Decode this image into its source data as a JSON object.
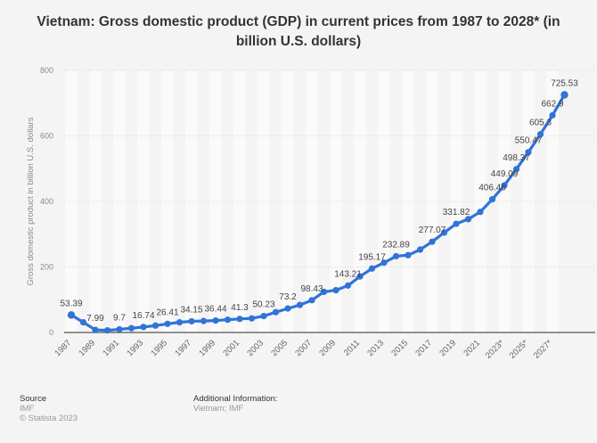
{
  "chart_data": {
    "type": "line",
    "title": "Vietnam: Gross domestic product (GDP) in current prices from 1987 to 2028* (in billion U.S. dollars)",
    "xlabel": "",
    "ylabel": "Gross domestic product in billion U.S. dollars",
    "ylim": [
      0,
      800
    ],
    "yticks": [
      0,
      200,
      400,
      600,
      800
    ],
    "grid": true,
    "legend": "none",
    "line_color": "#2f74d6",
    "x": [
      "1987",
      "1988",
      "1989",
      "1990",
      "1991",
      "1992",
      "1993",
      "1994",
      "1995",
      "1996",
      "1997",
      "1998",
      "1999",
      "2000",
      "2001",
      "2002",
      "2003",
      "2004",
      "2005",
      "2006",
      "2007",
      "2008",
      "2009",
      "2010",
      "2011",
      "2012",
      "2013",
      "2014",
      "2015",
      "2016",
      "2017",
      "2018",
      "2019",
      "2020",
      "2021",
      "2022",
      "2023*",
      "2024*",
      "2025*",
      "2026*",
      "2027*",
      "2028*"
    ],
    "xtick_labels": [
      "1987",
      "1989",
      "1991",
      "1993",
      "1995",
      "1997",
      "1999",
      "2001",
      "2003",
      "2005",
      "2007",
      "2009",
      "2011",
      "2013",
      "2015",
      "2017",
      "2019",
      "2021",
      "2023*",
      "2025*",
      "2027*"
    ],
    "values": [
      53.39,
      31,
      7.99,
      6.5,
      9.7,
      13,
      16.74,
      21,
      26.41,
      31,
      34.15,
      35,
      36.44,
      39,
      41.3,
      43,
      50.23,
      62,
      73.2,
      84,
      98.43,
      124,
      129,
      143.21,
      171,
      195.17,
      213,
      232.89,
      236,
      253,
      277.07,
      305,
      331.82,
      346,
      368,
      406.45,
      449.09,
      498.37,
      550.47,
      605.3,
      662.9,
      725.53
    ],
    "data_labels": [
      {
        "x": "1987",
        "text": "53.39"
      },
      {
        "x": "1989",
        "text": "7.99"
      },
      {
        "x": "1991",
        "text": "9.7"
      },
      {
        "x": "1993",
        "text": "16.74"
      },
      {
        "x": "1995",
        "text": "26.41"
      },
      {
        "x": "1997",
        "text": "34.15"
      },
      {
        "x": "1999",
        "text": "36.44"
      },
      {
        "x": "2001",
        "text": "41.3"
      },
      {
        "x": "2003",
        "text": "50.23"
      },
      {
        "x": "2005",
        "text": "73.2"
      },
      {
        "x": "2007",
        "text": "98.43"
      },
      {
        "x": "2010",
        "text": "143.21"
      },
      {
        "x": "2012",
        "text": "195.17"
      },
      {
        "x": "2014",
        "text": "232.89"
      },
      {
        "x": "2017",
        "text": "277.07"
      },
      {
        "x": "2019",
        "text": "331.82"
      },
      {
        "x": "2022",
        "text": "406.45"
      },
      {
        "x": "2023*",
        "text": "449.09"
      },
      {
        "x": "2024*",
        "text": "498.37"
      },
      {
        "x": "2025*",
        "text": "550.47"
      },
      {
        "x": "2026*",
        "text": "605.3"
      },
      {
        "x": "2027*",
        "text": "662.9"
      },
      {
        "x": "2028*",
        "text": "725.53"
      }
    ]
  },
  "footer": {
    "source_heading": "Source",
    "source_value": "IMF",
    "copyright": "© Statista 2023",
    "additional_heading": "Additional Information:",
    "additional_value": "Vietnam; IMF"
  }
}
